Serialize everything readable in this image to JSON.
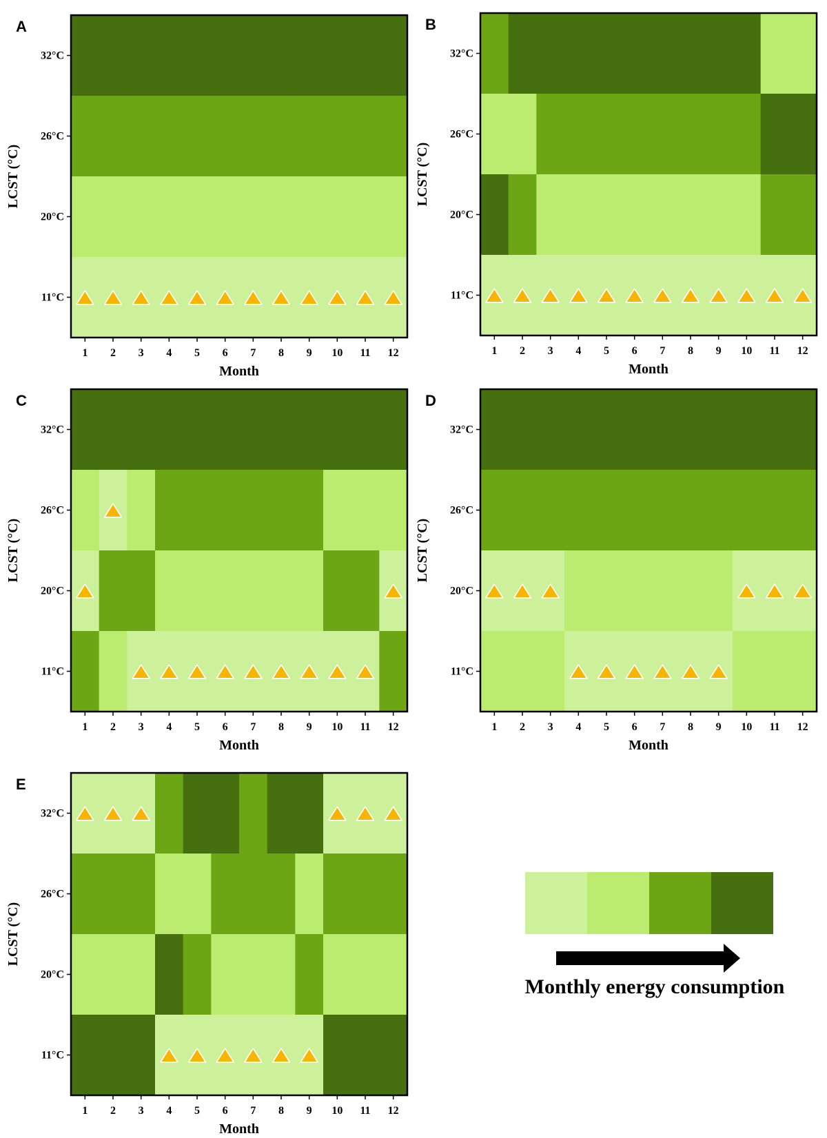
{
  "chart_data": {
    "type": "heatmap",
    "x_label": "Month",
    "y_label": "LCST (°C)",
    "months": [
      "1",
      "2",
      "3",
      "4",
      "5",
      "6",
      "7",
      "8",
      "9",
      "10",
      "11",
      "12"
    ],
    "lcst_levels": [
      "32°C",
      "26°C",
      "20°C",
      "11°C"
    ],
    "colors": [
      "#cdf09a",
      "#bbeb6f",
      "#6ca615",
      "#46700f"
    ],
    "marker_color": "#f7b500",
    "legend": {
      "title": "Monthly energy consumption",
      "arrow": "increasing"
    },
    "panels": [
      {
        "letter": "A",
        "levels": [
          [
            3,
            3,
            3,
            3,
            3,
            3,
            3,
            3,
            3,
            3,
            3,
            3
          ],
          [
            2,
            2,
            2,
            2,
            2,
            2,
            2,
            2,
            2,
            2,
            2,
            2
          ],
          [
            1,
            1,
            1,
            1,
            1,
            1,
            1,
            1,
            1,
            1,
            1,
            1
          ],
          [
            0,
            0,
            0,
            0,
            0,
            0,
            0,
            0,
            0,
            0,
            0,
            0
          ]
        ],
        "optimal_lcst_row": [
          3,
          3,
          3,
          3,
          3,
          3,
          3,
          3,
          3,
          3,
          3,
          3
        ]
      },
      {
        "letter": "B",
        "levels": [
          [
            2,
            3,
            3,
            3,
            3,
            3,
            3,
            3,
            3,
            3,
            1,
            1
          ],
          [
            1,
            1,
            2,
            2,
            2,
            2,
            2,
            2,
            2,
            2,
            3,
            3
          ],
          [
            3,
            2,
            1,
            1,
            1,
            1,
            1,
            1,
            1,
            1,
            2,
            2
          ],
          [
            0,
            0,
            0,
            0,
            0,
            0,
            0,
            0,
            0,
            0,
            0,
            0
          ]
        ],
        "optimal_lcst_row": [
          3,
          3,
          3,
          3,
          3,
          3,
          3,
          3,
          3,
          3,
          3,
          3
        ]
      },
      {
        "letter": "C",
        "levels": [
          [
            3,
            3,
            3,
            3,
            3,
            3,
            3,
            3,
            3,
            3,
            3,
            3
          ],
          [
            1,
            0,
            1,
            2,
            2,
            2,
            2,
            2,
            2,
            1,
            1,
            1
          ],
          [
            0,
            2,
            2,
            1,
            1,
            1,
            1,
            1,
            1,
            2,
            2,
            0
          ],
          [
            2,
            1,
            0,
            0,
            0,
            0,
            0,
            0,
            0,
            0,
            0,
            2
          ]
        ],
        "optimal_lcst_row": [
          2,
          1,
          3,
          3,
          3,
          3,
          3,
          3,
          3,
          3,
          3,
          2
        ]
      },
      {
        "letter": "D",
        "levels": [
          [
            3,
            3,
            3,
            3,
            3,
            3,
            3,
            3,
            3,
            3,
            3,
            3
          ],
          [
            2,
            2,
            2,
            2,
            2,
            2,
            2,
            2,
            2,
            2,
            2,
            2
          ],
          [
            0,
            0,
            0,
            1,
            1,
            1,
            1,
            1,
            1,
            0,
            0,
            0
          ],
          [
            1,
            1,
            1,
            0,
            0,
            0,
            0,
            0,
            0,
            1,
            1,
            1
          ]
        ],
        "optimal_lcst_row": [
          2,
          2,
          2,
          3,
          3,
          3,
          3,
          3,
          3,
          2,
          2,
          2
        ]
      },
      {
        "letter": "E",
        "levels": [
          [
            0,
            0,
            0,
            2,
            3,
            3,
            2,
            3,
            3,
            0,
            0,
            0
          ],
          [
            2,
            2,
            2,
            1,
            1,
            2,
            2,
            2,
            1,
            2,
            2,
            2
          ],
          [
            1,
            1,
            1,
            3,
            2,
            1,
            1,
            1,
            2,
            1,
            1,
            1
          ],
          [
            3,
            3,
            3,
            0,
            0,
            0,
            0,
            0,
            0,
            3,
            3,
            3
          ]
        ],
        "optimal_lcst_row": [
          0,
          0,
          0,
          3,
          3,
          3,
          3,
          3,
          3,
          0,
          0,
          0
        ]
      }
    ]
  }
}
